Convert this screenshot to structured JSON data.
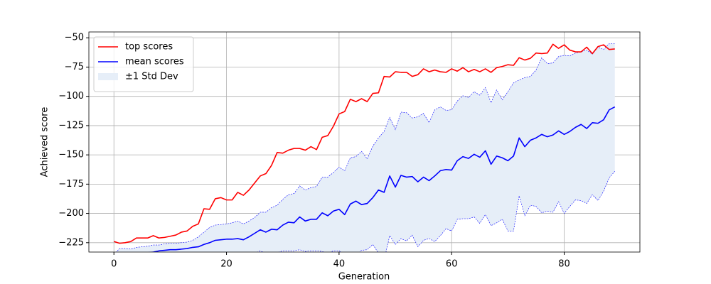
{
  "chart_data": {
    "type": "line",
    "x_label": "Generation",
    "y_label": "Achieved score",
    "x": [
      0,
      1,
      2,
      3,
      4,
      5,
      6,
      7,
      8,
      9,
      10,
      11,
      12,
      13,
      14,
      15,
      16,
      17,
      18,
      19,
      20,
      21,
      22,
      23,
      24,
      25,
      26,
      27,
      28,
      29,
      30,
      31,
      32,
      33,
      34,
      35,
      36,
      37,
      38,
      39,
      40,
      41,
      42,
      43,
      44,
      45,
      46,
      47,
      48,
      49,
      50,
      51,
      52,
      53,
      54,
      55,
      56,
      57,
      58,
      59,
      60,
      61,
      62,
      63,
      64,
      65,
      66,
      67,
      68,
      69,
      70,
      71,
      72,
      73,
      74,
      75,
      76,
      77,
      78,
      79,
      80,
      81,
      82,
      83,
      84,
      85,
      86,
      87,
      88,
      89
    ],
    "series": [
      {
        "name": "top scores",
        "color": "#ff0000",
        "values": [
          -224,
          -225.5,
          -225,
          -224,
          -221,
          -221,
          -221,
          -219,
          -221,
          -220.5,
          -219.5,
          -218.5,
          -216,
          -215,
          -211,
          -209,
          -196,
          -196.5,
          -187.5,
          -186.5,
          -188.5,
          -188.5,
          -182,
          -184.5,
          -180,
          -174,
          -168,
          -166,
          -159,
          -148,
          -148.5,
          -146,
          -144.5,
          -144.5,
          -146,
          -143,
          -145.5,
          -135,
          -133.5,
          -125.5,
          -115,
          -113,
          -102.5,
          -104.5,
          -102,
          -104.5,
          -97.5,
          -97,
          -83,
          -83.5,
          -79,
          -79.5,
          -79.5,
          -83,
          -81.5,
          -76.5,
          -79,
          -77.5,
          -79,
          -79.5,
          -76.5,
          -78.5,
          -75.5,
          -79,
          -77,
          -79,
          -76.5,
          -79.5,
          -75.5,
          -74.5,
          -73,
          -73.5,
          -67,
          -69,
          -67.5,
          -63,
          -63.5,
          -63,
          -55.5,
          -59,
          -56,
          -60.5,
          -62,
          -62,
          -58,
          -63.5,
          -57.5,
          -56,
          -60,
          -59.5
        ]
      },
      {
        "name": "mean scores",
        "color": "#0000ff",
        "values": [
          -235.5,
          -235.5,
          -235,
          -234.5,
          -234.5,
          -234,
          -233.5,
          -233,
          -232,
          -231.5,
          -231,
          -231,
          -230.5,
          -230,
          -229,
          -228.5,
          -226.5,
          -225,
          -223,
          -222.5,
          -222,
          -222,
          -221.5,
          -222.5,
          -220,
          -217,
          -214,
          -216,
          -213.5,
          -214,
          -210,
          -207.5,
          -208,
          -203,
          -206.5,
          -205,
          -205,
          -199.5,
          -202,
          -198,
          -196.5,
          -201,
          -192,
          -189.5,
          -192.5,
          -191.5,
          -186.5,
          -180,
          -182,
          -168,
          -177.5,
          -167.5,
          -169,
          -168.5,
          -173,
          -169,
          -172,
          -168,
          -163.5,
          -162.5,
          -163,
          -155,
          -151.5,
          -153,
          -149.5,
          -152,
          -146.5,
          -158,
          -151,
          -152.5,
          -155,
          -151,
          -135.5,
          -143,
          -137.5,
          -135.5,
          -132.5,
          -134.5,
          -133,
          -129.5,
          -132.5,
          -130,
          -126.5,
          -124,
          -127.5,
          -122.5,
          -123,
          -120,
          -111.5,
          -109
        ]
      }
    ],
    "band": {
      "name": "±1 Std Dev",
      "color": "#e6eef8",
      "edge_color": "#0000ff",
      "upper": [
        -235,
        -230,
        -230,
        -230.5,
        -229,
        -228.5,
        -228,
        -227,
        -227,
        -226,
        -225.5,
        -225.5,
        -225,
        -224.5,
        -223,
        -220,
        -216,
        -212,
        -210,
        -209.5,
        -209,
        -208,
        -206.5,
        -209,
        -206.5,
        -203.5,
        -199,
        -199,
        -195,
        -193,
        -188,
        -184,
        -183,
        -176.5,
        -180,
        -178,
        -177,
        -169,
        -169,
        -165,
        -160.5,
        -163.5,
        -152.5,
        -151.5,
        -147,
        -153.5,
        -142.5,
        -135.5,
        -130,
        -118,
        -128.5,
        -113.5,
        -114,
        -118.5,
        -117.5,
        -114.5,
        -122.5,
        -111.5,
        -109,
        -112,
        -111.5,
        -104,
        -99.5,
        -101,
        -96,
        -99,
        -92.5,
        -105.5,
        -94.5,
        -103,
        -96,
        -88.5,
        -86,
        -84,
        -83,
        -77.5,
        -67,
        -72,
        -71.5,
        -66,
        -65,
        -65.5,
        -63,
        -62,
        -60.5,
        -64,
        -58,
        -60,
        -55,
        -55
      ],
      "lower": [
        -245,
        -244,
        -243,
        -242,
        -242,
        -241,
        -241,
        -240,
        -240,
        -240,
        -239,
        -239,
        -239,
        -239,
        -238,
        -238,
        -238,
        -237,
        -237,
        -236,
        -236,
        -236,
        -236,
        -236,
        -235,
        -234,
        -232,
        -234,
        -234,
        -233.5,
        -232,
        -232,
        -232,
        -231,
        -232.5,
        -232,
        -232,
        -232.5,
        -234,
        -232,
        -232,
        -235,
        -234,
        -236,
        -231.5,
        -231,
        -226.5,
        -234,
        -240,
        -219,
        -226.5,
        -221.5,
        -223.5,
        -218.5,
        -228.5,
        -223,
        -221.5,
        -224,
        -219,
        -213,
        -215,
        -205,
        -204.5,
        -204.5,
        -203,
        -208.5,
        -201,
        -210.5,
        -208,
        -205,
        -215,
        -215,
        -185,
        -202,
        -193,
        -194,
        -199.5,
        -198,
        -199,
        -190,
        -200,
        -194,
        -188.5,
        -189,
        -191.5,
        -184,
        -189,
        -181,
        -169.5,
        -164
      ]
    },
    "xlim": [
      -4.45,
      93.45
    ],
    "ylim": [
      -233,
      -45
    ],
    "xticks": [
      0,
      20,
      40,
      60,
      80
    ],
    "yticks": [
      {
        "value": -225,
        "label": "−225"
      },
      {
        "value": -200,
        "label": "−200"
      },
      {
        "value": -175,
        "label": "−175"
      },
      {
        "value": -150,
        "label": "−150"
      },
      {
        "value": -125,
        "label": "−125"
      },
      {
        "value": -100,
        "label": "−100"
      },
      {
        "value": -75,
        "label": "−75"
      },
      {
        "value": -50,
        "label": "−50"
      }
    ],
    "grid": true,
    "legend": "upper left"
  }
}
